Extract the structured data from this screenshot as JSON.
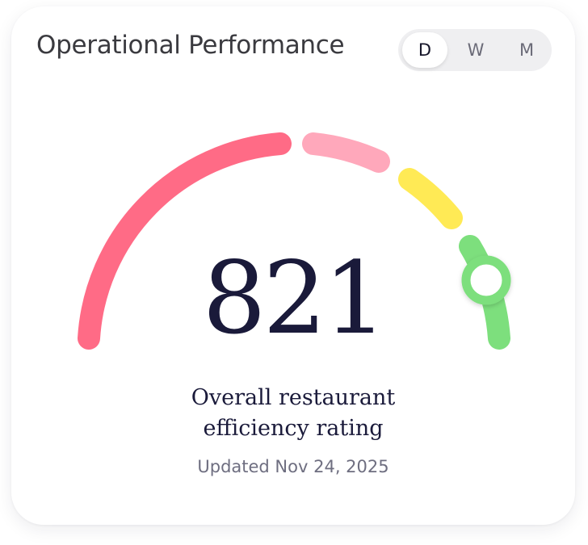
{
  "card": {
    "title": "Operational Performance"
  },
  "period_toggle": {
    "options": [
      "D",
      "W",
      "M"
    ],
    "selected": "D"
  },
  "gauge": {
    "score": "821",
    "segment_colors": [
      "#ff6b86",
      "#ffa8bb",
      "#ffea55",
      "#7ddf7d"
    ],
    "indicator_color": "#7ddf7d"
  },
  "description": {
    "line1": "Overall restaurant",
    "line2": "efficiency rating"
  },
  "updated_text": "Updated Nov 24, 2025"
}
